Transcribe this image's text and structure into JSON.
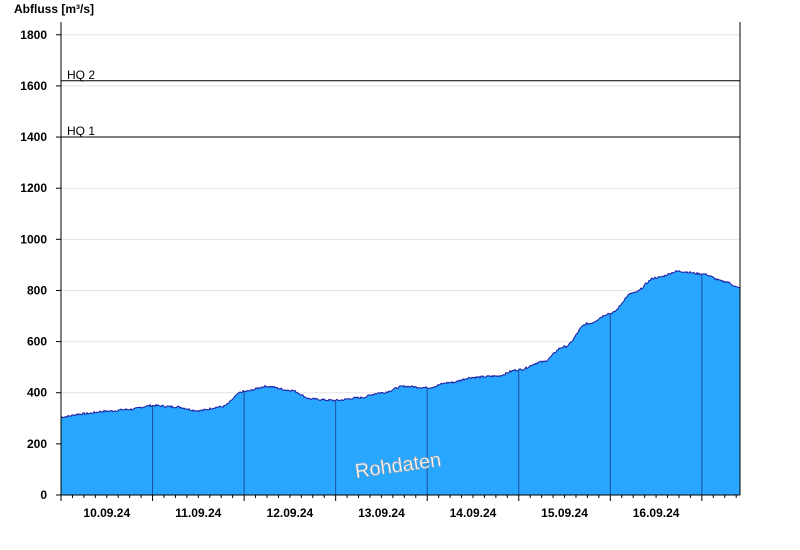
{
  "chart_data": {
    "type": "area",
    "ylabel": "Abfluss [m³/s]",
    "ylim": [
      0,
      1850
    ],
    "yticks": [
      0,
      200,
      400,
      600,
      800,
      1000,
      1200,
      1400,
      1600,
      1800
    ],
    "xlim": [
      "2024-09-09T12:00",
      "2024-09-16T22:00"
    ],
    "day_boundaries": [
      "2024-09-10T12:00",
      "2024-09-11T12:00",
      "2024-09-12T12:00",
      "2024-09-13T12:00",
      "2024-09-14T12:00",
      "2024-09-15T12:00",
      "2024-09-16T12:00"
    ],
    "xtick_labels": [
      {
        "label": "10.09.24",
        "at": "2024-09-10T00:00"
      },
      {
        "label": "11.09.24",
        "at": "2024-09-11T00:00"
      },
      {
        "label": "12.09.24",
        "at": "2024-09-12T00:00"
      },
      {
        "label": "13.09.24",
        "at": "2024-09-13T00:00"
      },
      {
        "label": "14.09.24",
        "at": "2024-09-14T00:00"
      },
      {
        "label": "15.09.24",
        "at": "2024-09-15T00:00"
      },
      {
        "label": "16.09.24",
        "at": "2024-09-16T00:00"
      }
    ],
    "reference_lines": [
      {
        "label": "HQ 1",
        "value": 1400
      },
      {
        "label": "HQ 2",
        "value": 1620
      }
    ],
    "series": [
      {
        "color": "#29a6ff",
        "line_color": "#1a1aa0",
        "x": [
          "2024-09-09T12:00",
          "2024-09-09T18:00",
          "2024-09-10T00:00",
          "2024-09-10T06:00",
          "2024-09-10T12:00",
          "2024-09-10T18:00",
          "2024-09-11T00:00",
          "2024-09-11T06:00",
          "2024-09-11T12:00",
          "2024-09-11T18:00",
          "2024-09-12T00:00",
          "2024-09-12T06:00",
          "2024-09-12T12:00",
          "2024-09-12T18:00",
          "2024-09-13T00:00",
          "2024-09-13T06:00",
          "2024-09-13T12:00",
          "2024-09-13T18:00",
          "2024-09-14T00:00",
          "2024-09-14T06:00",
          "2024-09-14T12:00",
          "2024-09-14T18:00",
          "2024-09-15T00:00",
          "2024-09-15T06:00",
          "2024-09-15T12:00",
          "2024-09-15T18:00",
          "2024-09-16T00:00",
          "2024-09-16T06:00",
          "2024-09-16T12:00",
          "2024-09-16T18:00",
          "2024-09-16T22:00"
        ],
        "values": [
          305,
          318,
          328,
          335,
          350,
          345,
          330,
          345,
          405,
          425,
          410,
          375,
          370,
          380,
          400,
          425,
          420,
          440,
          460,
          465,
          490,
          520,
          580,
          670,
          710,
          790,
          850,
          875,
          865,
          835,
          810
        ]
      }
    ],
    "annotations": [
      "Rohdaten"
    ]
  }
}
